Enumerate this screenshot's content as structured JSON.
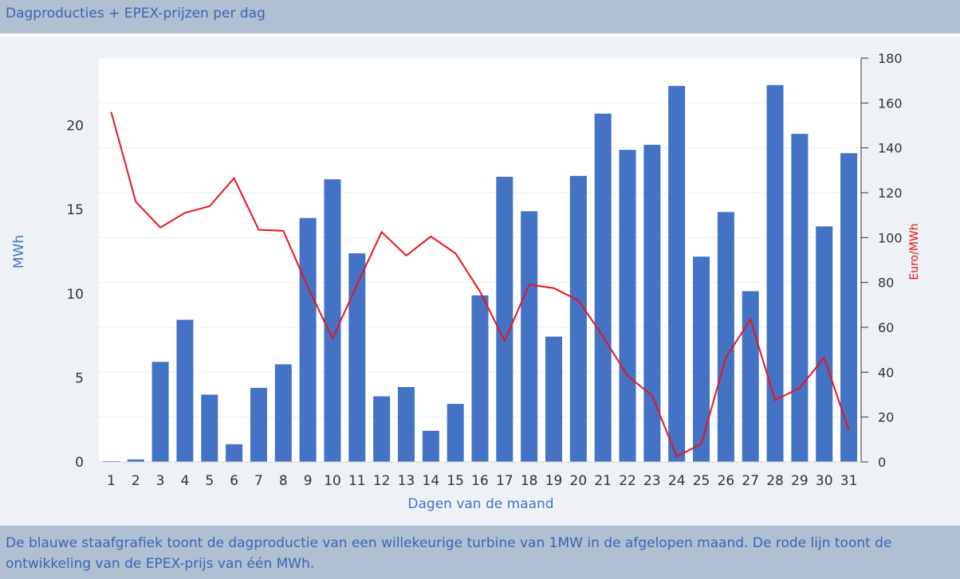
{
  "header": {
    "title": "Dagproducties + EPEX-prijzen per dag"
  },
  "footer": {
    "text": "De blauwe staafgrafiek toont de dagproductie van een willekeurige turbine van 1MW in de afgelopen maand. De rode lijn toont de ontwikkeling van de EPEX-prijs van één MWh."
  },
  "colors": {
    "bar": "#4472c4",
    "line": "#e8141b",
    "axis_left": "#4472c4",
    "axis_right": "#e8141b"
  },
  "chart_data": {
    "type": "bar",
    "xlabel": "Dagen van de maand",
    "ylabel": "MWh",
    "y2label": "Euro/MWh",
    "ylim": [
      0,
      24
    ],
    "y2lim": [
      0,
      180
    ],
    "yticks": [
      0,
      5,
      10,
      15,
      20
    ],
    "y2ticks": [
      0,
      20,
      40,
      60,
      80,
      100,
      120,
      140,
      160,
      180
    ],
    "categories": [
      "1",
      "2",
      "3",
      "4",
      "5",
      "6",
      "7",
      "8",
      "9",
      "10",
      "11",
      "12",
      "13",
      "14",
      "15",
      "16",
      "17",
      "18",
      "19",
      "20",
      "21",
      "22",
      "23",
      "24",
      "25",
      "26",
      "27",
      "28",
      "29",
      "30",
      "31"
    ],
    "series": [
      {
        "type": "bar",
        "axis": "left",
        "values": [
          0.05,
          0.15,
          5.95,
          8.45,
          4.0,
          1.05,
          4.4,
          5.8,
          14.5,
          16.8,
          12.4,
          3.9,
          4.45,
          1.85,
          3.45,
          9.9,
          16.95,
          14.9,
          7.45,
          17.0,
          20.7,
          18.55,
          18.85,
          22.35,
          12.2,
          14.85,
          10.15,
          22.4,
          19.5,
          14.0,
          18.35
        ]
      },
      {
        "type": "line",
        "axis": "right",
        "values": [
          156,
          116,
          104.5,
          111,
          114,
          126.5,
          103.5,
          103,
          78,
          55,
          79,
          102.5,
          92,
          100.5,
          93,
          76,
          54,
          79,
          77.5,
          72,
          56,
          38.5,
          29.5,
          2.5,
          8,
          46.5,
          63.5,
          27.5,
          33,
          46.5,
          14
        ]
      }
    ]
  }
}
